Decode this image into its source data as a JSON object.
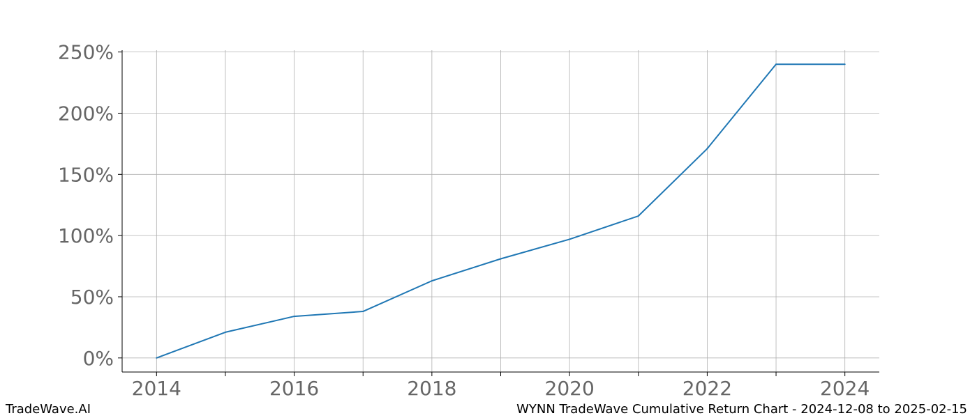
{
  "chart_data": {
    "type": "line",
    "title": "",
    "xlabel": "",
    "ylabel": "",
    "x": [
      2014,
      2015,
      2016,
      2017,
      2018,
      2019,
      2020,
      2021,
      2022,
      2023,
      2024
    ],
    "series": [
      {
        "values": [
          0,
          21,
          34,
          38,
          63,
          81,
          97,
          116,
          171,
          240,
          240
        ],
        "color": "#1f77b4"
      }
    ],
    "xlim": [
      2013.5,
      2024.5
    ],
    "ylim": [
      -11.5,
      251.5
    ],
    "x_ticks": [
      2014,
      2016,
      2018,
      2020,
      2022,
      2024
    ],
    "x_tick_labels": [
      "2014",
      "2016",
      "2018",
      "2020",
      "2022",
      "2024"
    ],
    "y_ticks": [
      0,
      50,
      100,
      150,
      200,
      250
    ],
    "y_tick_labels": [
      "0%",
      "50%",
      "100%",
      "150%",
      "200%",
      "250%"
    ],
    "grid": true,
    "legend": "none"
  },
  "footer": {
    "left": "TradeWave.AI",
    "right": "WYNN TradeWave Cumulative Return Chart - 2024-12-08 to 2025-02-15"
  }
}
